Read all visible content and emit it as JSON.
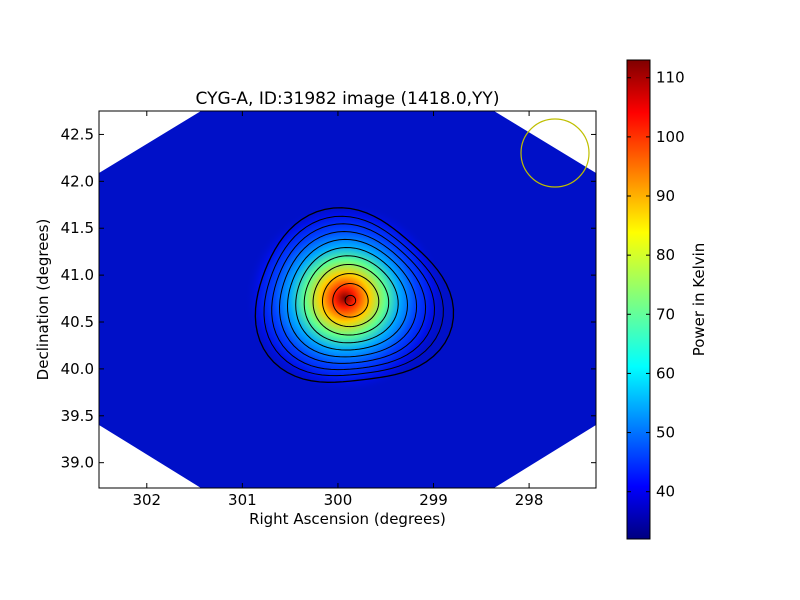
{
  "chart_data": {
    "type": "heatmap",
    "title": "CYG-A, ID:31982 image (1418.0,YY)",
    "xlabel": "Right Ascension (degrees)",
    "ylabel": "Declination (degrees)",
    "xlim": [
      302.5,
      297.3
    ],
    "ylim": [
      38.73,
      42.75
    ],
    "x_inverted": true,
    "xticks": [
      302,
      301,
      300,
      299,
      298
    ],
    "yticks": [
      39.0,
      39.5,
      40.0,
      40.5,
      41.0,
      41.5,
      42.0,
      42.5
    ],
    "colorbar": {
      "label": "Power in Kelvin",
      "min": 32,
      "max": 113,
      "ticks": [
        40,
        50,
        60,
        70,
        80,
        90,
        100,
        110
      ],
      "colormap": "jet"
    },
    "source": {
      "ra": 299.87,
      "dec": 40.73,
      "peak_kelvin": 113,
      "background_kelvin": 36
    },
    "contour_levels": [
      40,
      48,
      55,
      62,
      69,
      76,
      83,
      90,
      97,
      104,
      111
    ],
    "beam_marker": {
      "ra": 297.65,
      "dec": 42.29,
      "radius_deg": 0.36,
      "color": "#bfbf00"
    },
    "grid": false
  }
}
